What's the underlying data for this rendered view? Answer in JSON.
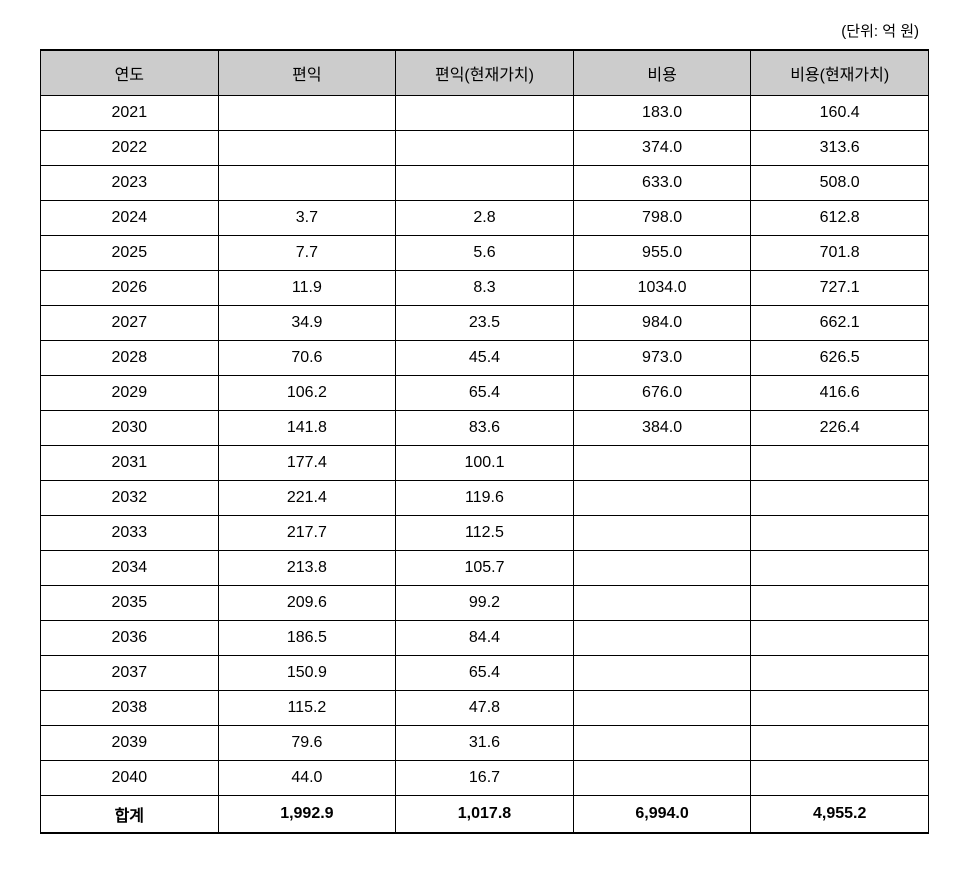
{
  "table": {
    "unit_label": "(단위: 억 원)",
    "columns": [
      "연도",
      "편익",
      "편익(현재가치)",
      "비용",
      "비용(현재가치)"
    ],
    "column_widths": [
      "20%",
      "20%",
      "20%",
      "20%",
      "20%"
    ],
    "rows": [
      [
        "2021",
        "",
        "",
        "183.0",
        "160.4"
      ],
      [
        "2022",
        "",
        "",
        "374.0",
        "313.6"
      ],
      [
        "2023",
        "",
        "",
        "633.0",
        "508.0"
      ],
      [
        "2024",
        "3.7",
        "2.8",
        "798.0",
        "612.8"
      ],
      [
        "2025",
        "7.7",
        "5.6",
        "955.0",
        "701.8"
      ],
      [
        "2026",
        "11.9",
        "8.3",
        "1034.0",
        "727.1"
      ],
      [
        "2027",
        "34.9",
        "23.5",
        "984.0",
        "662.1"
      ],
      [
        "2028",
        "70.6",
        "45.4",
        "973.0",
        "626.5"
      ],
      [
        "2029",
        "106.2",
        "65.4",
        "676.0",
        "416.6"
      ],
      [
        "2030",
        "141.8",
        "83.6",
        "384.0",
        "226.4"
      ],
      [
        "2031",
        "177.4",
        "100.1",
        "",
        ""
      ],
      [
        "2032",
        "221.4",
        "119.6",
        "",
        ""
      ],
      [
        "2033",
        "217.7",
        "112.5",
        "",
        ""
      ],
      [
        "2034",
        "213.8",
        "105.7",
        "",
        ""
      ],
      [
        "2035",
        "209.6",
        "99.2",
        "",
        ""
      ],
      [
        "2036",
        "186.5",
        "84.4",
        "",
        ""
      ],
      [
        "2037",
        "150.9",
        "65.4",
        "",
        ""
      ],
      [
        "2038",
        "115.2",
        "47.8",
        "",
        ""
      ],
      [
        "2039",
        "79.6",
        "31.6",
        "",
        ""
      ],
      [
        "2040",
        "44.0",
        "16.7",
        "",
        ""
      ]
    ],
    "total_row": [
      "합계",
      "1,992.9",
      "1,017.8",
      "6,994.0",
      "4,955.2"
    ],
    "header_bg_color": "#cccccc",
    "border_color": "#000000",
    "background_color": "#ffffff",
    "text_color": "#000000",
    "font_size_header": 16,
    "font_size_body": 16,
    "font_size_unit": 15
  }
}
